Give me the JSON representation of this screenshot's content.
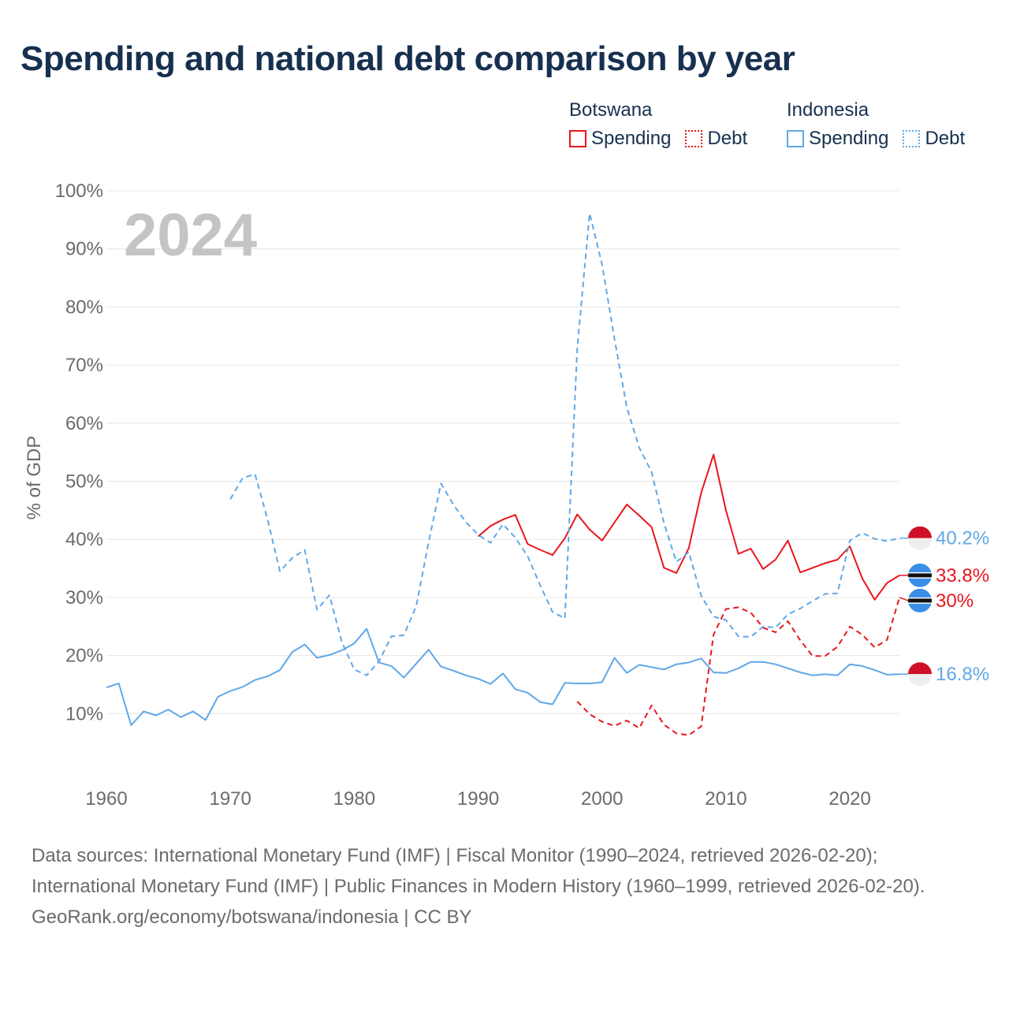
{
  "title": "Spending and national debt comparison by year",
  "legend": {
    "groups": [
      {
        "name": "Botswana",
        "items": [
          {
            "label": "Spending",
            "style": "solid",
            "color": "#e8161d"
          },
          {
            "label": "Debt",
            "style": "dotted",
            "color": "#e8161d"
          }
        ]
      },
      {
        "name": "Indonesia",
        "items": [
          {
            "label": "Spending",
            "style": "solid",
            "color": "#5fa8e8"
          },
          {
            "label": "Debt",
            "style": "dotted",
            "color": "#5fa8e8"
          }
        ]
      }
    ]
  },
  "colors": {
    "botswana": "#e8161d",
    "indonesia": "#5fa8e8",
    "grid": "#e6e6e6",
    "axis_text": "#6b6b6b",
    "title": "#17304f",
    "year_watermark": "#c4c4c4"
  },
  "chart_data": {
    "type": "line",
    "title": "Spending and national debt comparison by year",
    "year_label": "2024",
    "xlabel": "",
    "ylabel": "% of GDP",
    "xlim": [
      1960,
      2024
    ],
    "ylim": [
      0,
      100
    ],
    "x_ticks": [
      1960,
      1970,
      1980,
      1990,
      2000,
      2010,
      2020
    ],
    "y_ticks": [
      10,
      20,
      30,
      40,
      50,
      60,
      70,
      80,
      90,
      100
    ],
    "y_tick_labels": [
      "10%",
      "20%",
      "30%",
      "40%",
      "50%",
      "60%",
      "70%",
      "80%",
      "90%",
      "100%"
    ],
    "series": [
      {
        "name": "Botswana Spending",
        "country": "Botswana",
        "measure": "Spending",
        "color": "#e8161d",
        "dash": "solid",
        "end_label": "33.8%",
        "flag": "botswana",
        "points": [
          [
            1990,
            40.5
          ],
          [
            1991,
            42.3
          ],
          [
            1992,
            43.4
          ],
          [
            1993,
            44.2
          ],
          [
            1994,
            39.2
          ],
          [
            1995,
            38.2
          ],
          [
            1996,
            37.3
          ],
          [
            1997,
            40.2
          ],
          [
            1998,
            44.3
          ],
          [
            1999,
            41.7
          ],
          [
            2000,
            39.8
          ],
          [
            2001,
            42.9
          ],
          [
            2002,
            46.0
          ],
          [
            2003,
            44.1
          ],
          [
            2004,
            42.1
          ],
          [
            2005,
            35.1
          ],
          [
            2006,
            34.2
          ],
          [
            2007,
            38.5
          ],
          [
            2008,
            48.0
          ],
          [
            2009,
            54.6
          ],
          [
            2010,
            45.0
          ],
          [
            2011,
            37.5
          ],
          [
            2012,
            38.4
          ],
          [
            2013,
            34.9
          ],
          [
            2014,
            36.5
          ],
          [
            2015,
            39.8
          ],
          [
            2016,
            34.3
          ],
          [
            2017,
            35.1
          ],
          [
            2018,
            35.9
          ],
          [
            2019,
            36.5
          ],
          [
            2020,
            38.8
          ],
          [
            2021,
            33.3
          ],
          [
            2022,
            29.6
          ],
          [
            2023,
            32.5
          ],
          [
            2024,
            33.8
          ]
        ]
      },
      {
        "name": "Botswana Debt",
        "country": "Botswana",
        "measure": "Debt",
        "color": "#e8161d",
        "dash": "dashed",
        "end_label": "30%",
        "flag": "botswana",
        "points": [
          [
            1998,
            12.1
          ],
          [
            1999,
            9.9
          ],
          [
            2000,
            8.6
          ],
          [
            2001,
            7.9
          ],
          [
            2002,
            8.8
          ],
          [
            2003,
            7.5
          ],
          [
            2004,
            11.4
          ],
          [
            2005,
            8.1
          ],
          [
            2006,
            6.6
          ],
          [
            2007,
            6.3
          ],
          [
            2008,
            7.8
          ],
          [
            2009,
            23.6
          ],
          [
            2010,
            28.0
          ],
          [
            2011,
            28.3
          ],
          [
            2012,
            27.4
          ],
          [
            2013,
            24.8
          ],
          [
            2014,
            24.0
          ],
          [
            2015,
            25.9
          ],
          [
            2016,
            22.6
          ],
          [
            2017,
            19.9
          ],
          [
            2018,
            19.9
          ],
          [
            2019,
            21.5
          ],
          [
            2020,
            25.0
          ],
          [
            2021,
            23.6
          ],
          [
            2022,
            21.4
          ],
          [
            2023,
            22.7
          ],
          [
            2024,
            30.0
          ]
        ]
      },
      {
        "name": "Indonesia Spending",
        "country": "Indonesia",
        "measure": "Spending",
        "color": "#5fa8e8",
        "dash": "solid",
        "end_label": "16.8%",
        "flag": "indonesia",
        "points": [
          [
            1960,
            14.5
          ],
          [
            1961,
            15.2
          ],
          [
            1962,
            8.0
          ],
          [
            1963,
            10.4
          ],
          [
            1964,
            9.7
          ],
          [
            1965,
            10.7
          ],
          [
            1966,
            9.4
          ],
          [
            1967,
            10.4
          ],
          [
            1968,
            8.9
          ],
          [
            1969,
            12.9
          ],
          [
            1970,
            13.9
          ],
          [
            1971,
            14.6
          ],
          [
            1972,
            15.8
          ],
          [
            1973,
            16.4
          ],
          [
            1974,
            17.5
          ],
          [
            1975,
            20.6
          ],
          [
            1976,
            21.9
          ],
          [
            1977,
            19.6
          ],
          [
            1978,
            20.1
          ],
          [
            1979,
            20.9
          ],
          [
            1980,
            22.1
          ],
          [
            1981,
            24.6
          ],
          [
            1982,
            18.8
          ],
          [
            1983,
            18.2
          ],
          [
            1984,
            16.2
          ],
          [
            1985,
            18.6
          ],
          [
            1986,
            21.0
          ],
          [
            1987,
            18.1
          ],
          [
            1988,
            17.4
          ],
          [
            1989,
            16.6
          ],
          [
            1990,
            16.0
          ],
          [
            1991,
            15.1
          ],
          [
            1992,
            16.9
          ],
          [
            1993,
            14.2
          ],
          [
            1994,
            13.6
          ],
          [
            1995,
            12.0
          ],
          [
            1996,
            11.6
          ],
          [
            1997,
            15.3
          ],
          [
            1998,
            15.2
          ],
          [
            1999,
            15.2
          ],
          [
            2000,
            15.4
          ],
          [
            2001,
            19.6
          ],
          [
            2002,
            17.0
          ],
          [
            2003,
            18.4
          ],
          [
            2004,
            18.0
          ],
          [
            2005,
            17.6
          ],
          [
            2006,
            18.5
          ],
          [
            2007,
            18.8
          ],
          [
            2008,
            19.5
          ],
          [
            2009,
            17.1
          ],
          [
            2010,
            17.0
          ],
          [
            2011,
            17.8
          ],
          [
            2012,
            18.9
          ],
          [
            2013,
            18.9
          ],
          [
            2014,
            18.5
          ],
          [
            2015,
            17.8
          ],
          [
            2016,
            17.1
          ],
          [
            2017,
            16.6
          ],
          [
            2018,
            16.8
          ],
          [
            2019,
            16.6
          ],
          [
            2020,
            18.5
          ],
          [
            2021,
            18.2
          ],
          [
            2022,
            17.5
          ],
          [
            2023,
            16.7
          ],
          [
            2024,
            16.8
          ]
        ]
      },
      {
        "name": "Indonesia Debt",
        "country": "Indonesia",
        "measure": "Debt",
        "color": "#5fa8e8",
        "dash": "dashed",
        "end_label": "40.2%",
        "flag": "indonesia",
        "points": [
          [
            1970,
            46.9
          ],
          [
            1971,
            50.6
          ],
          [
            1972,
            51.2
          ],
          [
            1973,
            43.5
          ],
          [
            1974,
            34.5
          ],
          [
            1975,
            36.8
          ],
          [
            1976,
            38.2
          ],
          [
            1977,
            27.9
          ],
          [
            1978,
            30.4
          ],
          [
            1979,
            22.3
          ],
          [
            1980,
            17.6
          ],
          [
            1981,
            16.6
          ],
          [
            1982,
            19.0
          ],
          [
            1983,
            23.3
          ],
          [
            1984,
            23.5
          ],
          [
            1985,
            28.5
          ],
          [
            1986,
            39.5
          ],
          [
            1987,
            49.6
          ],
          [
            1988,
            46.0
          ],
          [
            1989,
            43.0
          ],
          [
            1990,
            40.8
          ],
          [
            1991,
            39.4
          ],
          [
            1992,
            42.6
          ],
          [
            1993,
            40.3
          ],
          [
            1994,
            37.1
          ],
          [
            1995,
            32.1
          ],
          [
            1996,
            27.5
          ],
          [
            1997,
            26.4
          ],
          [
            1998,
            72.9
          ],
          [
            1999,
            96.1
          ],
          [
            2000,
            87.3
          ],
          [
            2001,
            74.5
          ],
          [
            2002,
            62.7
          ],
          [
            2003,
            55.8
          ],
          [
            2004,
            51.6
          ],
          [
            2005,
            42.8
          ],
          [
            2006,
            36.1
          ],
          [
            2007,
            37.8
          ],
          [
            2008,
            30.3
          ],
          [
            2009,
            26.7
          ],
          [
            2010,
            26.1
          ],
          [
            2011,
            23.3
          ],
          [
            2012,
            23.2
          ],
          [
            2013,
            25.0
          ],
          [
            2014,
            24.8
          ],
          [
            2015,
            27.1
          ],
          [
            2016,
            28.1
          ],
          [
            2017,
            29.4
          ],
          [
            2018,
            30.6
          ],
          [
            2019,
            30.7
          ],
          [
            2020,
            39.8
          ],
          [
            2021,
            41.1
          ],
          [
            2022,
            40.1
          ],
          [
            2023,
            39.7
          ],
          [
            2024,
            40.2
          ]
        ]
      }
    ]
  },
  "footer": {
    "sources": "Data sources: International Monetary Fund (IMF) | Fiscal Monitor (1990–2024, retrieved 2026-02-20); International Monetary Fund (IMF) | Public Finances in Modern History (1960–1999, retrieved 2026-02-20).",
    "credit": "GeoRank.org/economy/botswana/indonesia | CC BY"
  }
}
